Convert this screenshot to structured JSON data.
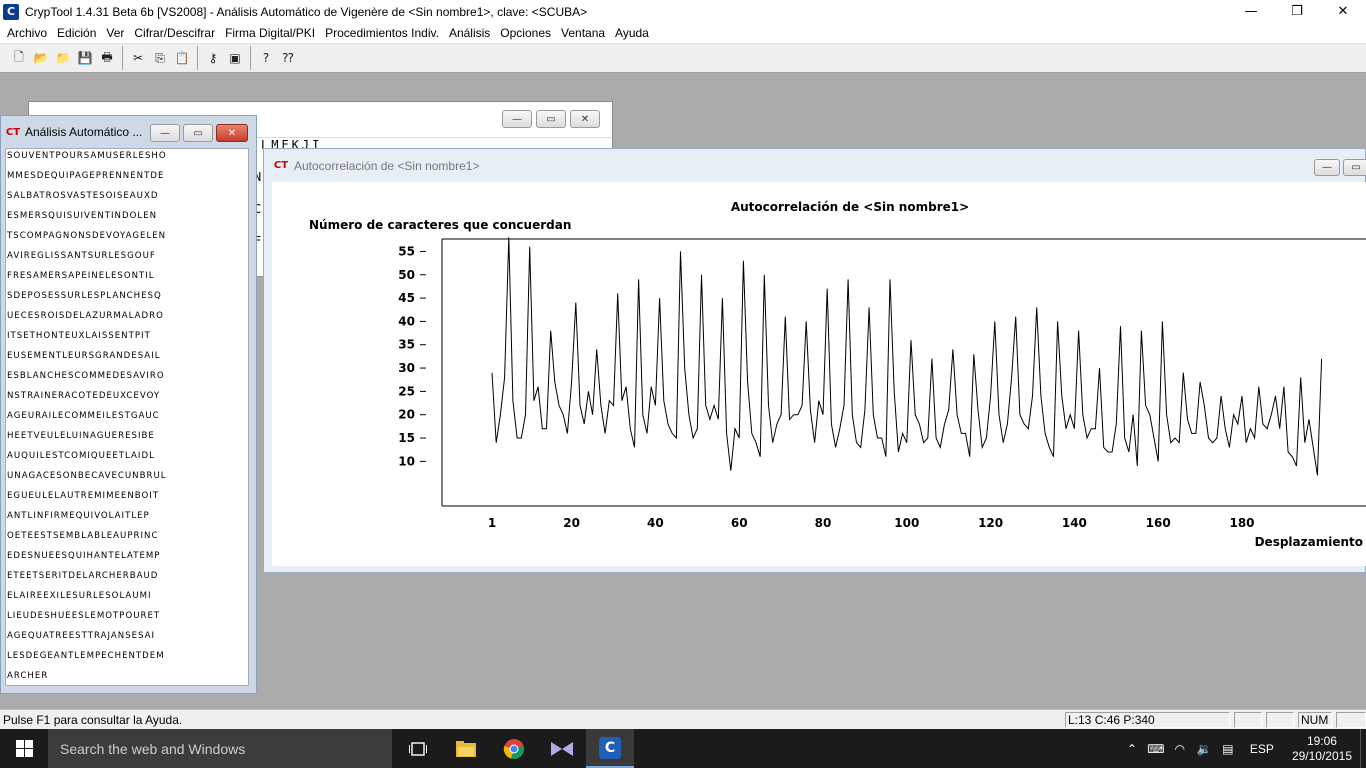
{
  "app": {
    "title": "CrypTool 1.4.31 Beta 6b [VS2008] - Análisis Automático de Vigenère de <Sin nombre1>, clave: <SCUBA>",
    "icon_glyph": "C",
    "controls": {
      "minimize": "—",
      "maximize": "❐",
      "close": "✕"
    }
  },
  "menu": {
    "items": [
      "Archivo",
      "Edición",
      "Ver",
      "Cifrar/Descifrar",
      "Firma Digital/PKI",
      "Procedimientos Indiv.",
      "Análisis",
      "Opciones",
      "Ventana",
      "Ayuda"
    ]
  },
  "toolbar": {
    "buttons": [
      {
        "name": "new-icon",
        "glyph": "🗋"
      },
      {
        "name": "open-icon",
        "glyph": "📂"
      },
      {
        "name": "open-sample-icon",
        "glyph": "📁"
      },
      {
        "name": "save-icon",
        "glyph": "💾"
      },
      {
        "name": "print-icon",
        "glyph": "🖶"
      },
      {
        "name": "sep"
      },
      {
        "name": "cut-icon",
        "glyph": "✂"
      },
      {
        "name": "copy-icon",
        "glyph": "⎘"
      },
      {
        "name": "paste-icon",
        "glyph": "📋"
      },
      {
        "name": "sep"
      },
      {
        "name": "key-icon",
        "glyph": "⚷"
      },
      {
        "name": "window-icon",
        "glyph": "▣"
      },
      {
        "name": "sep"
      },
      {
        "name": "help-icon",
        "glyph": "?"
      },
      {
        "name": "context-help-icon",
        "glyph": "⁇"
      }
    ]
  },
  "back_window": {
    "text_top": "LMEKJI",
    "side_chars": [
      "N",
      "C",
      "F"
    ],
    "controls": {
      "minimize": "—",
      "maximize": "▭",
      "close": "✕"
    }
  },
  "text_window": {
    "title": "Análisis Automático ...",
    "icon": "CT",
    "controls": {
      "minimize": "—",
      "maximize": "▭",
      "close": "✕"
    },
    "lines": [
      "SOUVENTPOURSAMUSERLESHO",
      "MMESDEQUIPAGEPRENNENTDE",
      "SALBATROSVASTESOISEAUXD",
      "ESMERSQUISUIVENTINDOLEN",
      "TSCOMPAGNONSDEVOYAGELEN",
      "AVIREGLISSANTSURLESGOUF",
      "FRESAMERSAPEINELESONTIL",
      "SDEPOSESSURLESPLANCHESQ",
      "UECESROISDELAZURMALADRO",
      "ITSETHONTEUXLAISSENTPIT",
      "EUSEMENTLEURSGRANDESAIL",
      "ESBLANCHESCOMMEDESAVIRO",
      "NSTRAINERACOTEDEUXCEVOY",
      "AGEURAILECOMMEILESTGAUC",
      "HEETVEULELUINAGUERESIBE",
      "AUQUILESTCOMIQUEETLAIDL",
      "UNAGACESONBECAVECUNBRUL",
      "EGUEULELAUTREMIMEENBOIT",
      "ANTLINFIRMEQUIVOLAITLEP",
      "OETEESTSEMBLABLEAUPRINC",
      "EDESNUEESQUIHANTELATEMP",
      "ETEETSERITDELARCHERBAUD",
      "ELAIREEXILESURLESOLAUMI",
      "LIEUDESHUEESLEMOTPOURET",
      "AGEQUATREESTTRAJANSESAI",
      "LESDEGEANTLEMPECHENTDEM",
      "ARCHER"
    ]
  },
  "autocorr_window": {
    "title": "Autocorrelación de <Sin nombre1>",
    "icon": "CT",
    "controls": {
      "minimize": "—",
      "maximize": "▭"
    }
  },
  "chart_data": {
    "type": "line",
    "title": "Autocorrelación de <Sin nombre1>",
    "ylabel": "Número de caracteres que concuerdan",
    "xlabel": "Desplazamiento",
    "x_ticks": [
      1,
      20,
      40,
      60,
      80,
      100,
      120,
      140,
      160,
      180
    ],
    "y_ticks": [
      10,
      15,
      20,
      25,
      30,
      35,
      40,
      45,
      50,
      55
    ],
    "xlim": [
      1,
      199
    ],
    "ylim": [
      4,
      60
    ],
    "grid": false,
    "color": "#000000",
    "series": [
      {
        "values": [
          29,
          14,
          20,
          28,
          58,
          23,
          15,
          15,
          20,
          56,
          23,
          26,
          17,
          17,
          38,
          27,
          22,
          20,
          16,
          27,
          44,
          22,
          18,
          25,
          20,
          34,
          22,
          16,
          23,
          22,
          46,
          23,
          26,
          17,
          13,
          49,
          20,
          16,
          26,
          22,
          45,
          23,
          18,
          16,
          15,
          55,
          30,
          20,
          15,
          17,
          50,
          22,
          19,
          22,
          19,
          45,
          16,
          8,
          17,
          15,
          53,
          27,
          16,
          14,
          11,
          50,
          22,
          14,
          18,
          20,
          41,
          19,
          20,
          20,
          22,
          40,
          21,
          14,
          23,
          20,
          47,
          18,
          13,
          17,
          22,
          49,
          20,
          14,
          13,
          21,
          43,
          20,
          15,
          15,
          11,
          49,
          25,
          12,
          16,
          14,
          36,
          20,
          18,
          14,
          15,
          32,
          15,
          13,
          18,
          21,
          34,
          20,
          16,
          16,
          11,
          33,
          21,
          13,
          15,
          24,
          40,
          20,
          14,
          18,
          28,
          41,
          20,
          18,
          17,
          24,
          43,
          24,
          16,
          13,
          11,
          40,
          24,
          17,
          20,
          17,
          38,
          20,
          15,
          17,
          17,
          30,
          13,
          12,
          12,
          18,
          39,
          15,
          12,
          20,
          9,
          38,
          22,
          20,
          15,
          10,
          40,
          20,
          14,
          15,
          14,
          29,
          19,
          16,
          16,
          27,
          22,
          15,
          14,
          15,
          24,
          17,
          13,
          20,
          18,
          24,
          14,
          17,
          15,
          26,
          18,
          17,
          20,
          24,
          17,
          26,
          12,
          11,
          9,
          28,
          14,
          19,
          13,
          7,
          32
        ]
      }
    ]
  },
  "statusbar": {
    "help": "Pulse F1 para consultar la Ayuda.",
    "position": "L:13  C:46  P:340",
    "blank1": "",
    "blank2": "",
    "num": "NUM",
    "blank3": ""
  },
  "taskbar": {
    "search_placeholder": "Search the web and Windows",
    "lang": "ESP",
    "time": "19:06",
    "date": "29/10/2015"
  }
}
